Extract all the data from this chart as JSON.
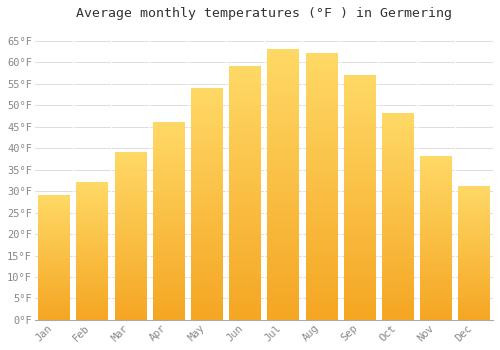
{
  "title": "Average monthly temperatures (°F ) in Germering",
  "months": [
    "Jan",
    "Feb",
    "Mar",
    "Apr",
    "May",
    "Jun",
    "Jul",
    "Aug",
    "Sep",
    "Oct",
    "Nov",
    "Dec"
  ],
  "values": [
    29,
    32,
    39,
    46,
    54,
    59,
    63,
    62,
    57,
    48,
    38,
    31
  ],
  "bar_color_main": "#F5A623",
  "bar_color_light": "#FFD966",
  "ylim": [
    0,
    68
  ],
  "yticks": [
    0,
    5,
    10,
    15,
    20,
    25,
    30,
    35,
    40,
    45,
    50,
    55,
    60,
    65
  ],
  "ytick_labels": [
    "0°F",
    "5°F",
    "10°F",
    "15°F",
    "20°F",
    "25°F",
    "30°F",
    "35°F",
    "40°F",
    "45°F",
    "50°F",
    "55°F",
    "60°F",
    "65°F"
  ],
  "background_color": "#FFFFFF",
  "plot_bg_color": "#FAFAFA",
  "grid_color": "#DDDDDD",
  "title_fontsize": 9.5,
  "tick_fontsize": 7.5,
  "bar_width": 0.82,
  "font_family": "monospace",
  "tick_color": "#888888",
  "spine_color": "#AAAAAA"
}
